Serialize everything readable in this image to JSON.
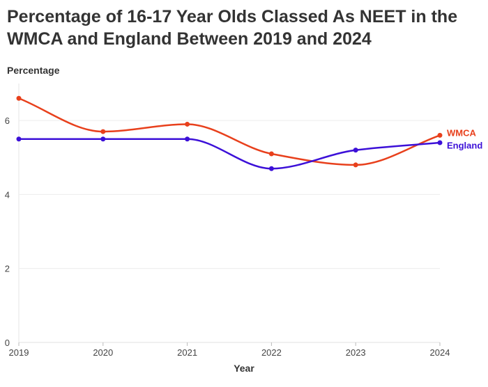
{
  "chart_data": {
    "type": "line",
    "title": "Percentage of 16-17 Year Olds Classed As NEET in the WMCA and England Between 2019 and 2024",
    "xlabel": "Year",
    "ylabel": "Percentage",
    "categories": [
      "2019",
      "2020",
      "2021",
      "2022",
      "2023",
      "2024"
    ],
    "yticks": [
      "0",
      "2",
      "4",
      "6"
    ],
    "ylim": [
      0,
      7
    ],
    "grid": true,
    "legend": "inline-end-labels",
    "series": [
      {
        "name": "WMCA",
        "color": "#e8401c",
        "values": [
          6.6,
          5.7,
          5.9,
          5.1,
          4.8,
          5.6
        ]
      },
      {
        "name": "England",
        "color": "#3c10d8",
        "values": [
          5.5,
          5.5,
          5.5,
          4.7,
          5.2,
          5.4
        ]
      }
    ]
  }
}
